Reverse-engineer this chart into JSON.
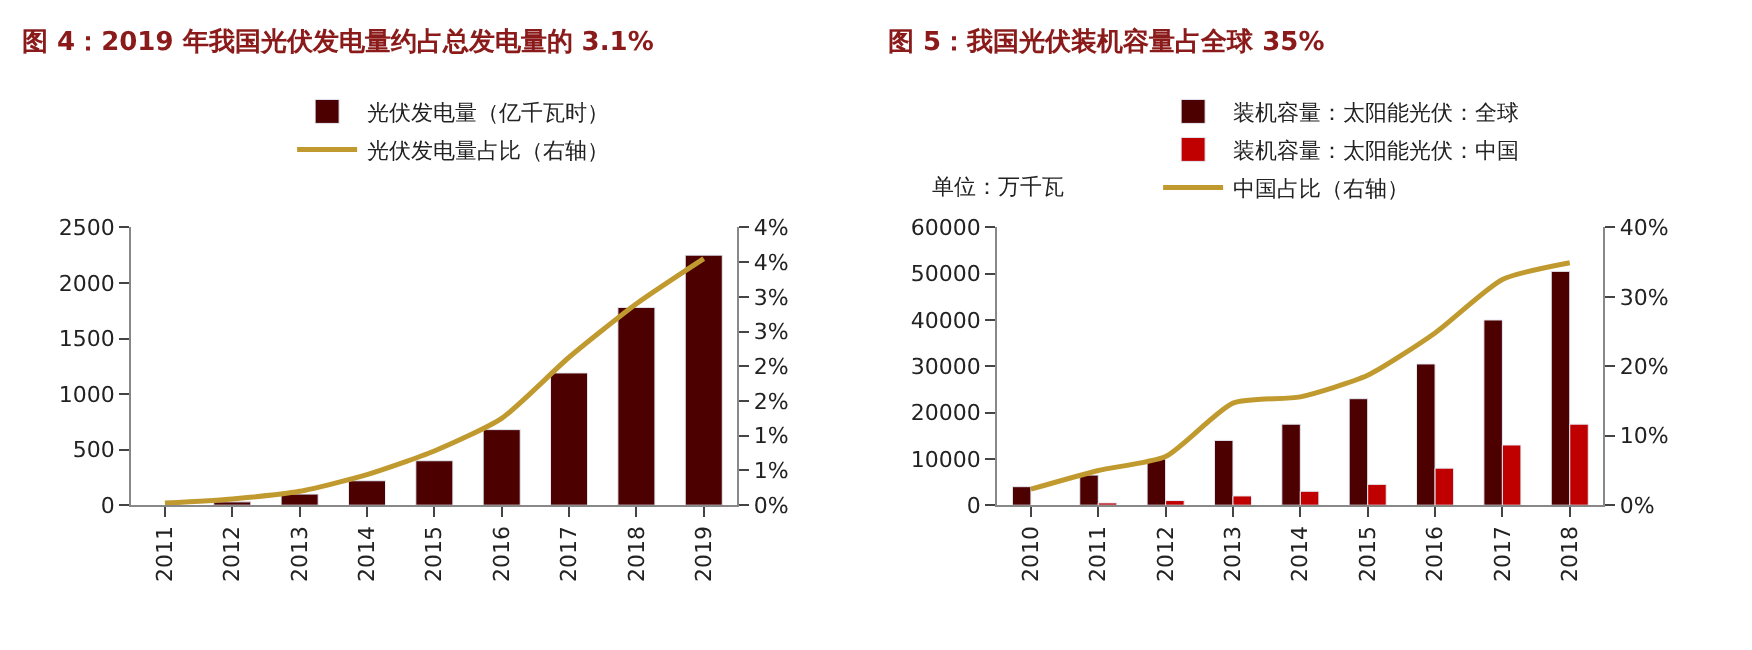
{
  "chart_data": [
    {
      "type": "bar",
      "title": "图 4：2019 年我国光伏发电量约占总发电量的 3.1%",
      "categories": [
        "2011",
        "2012",
        "2013",
        "2014",
        "2015",
        "2016",
        "2017",
        "2018",
        "2019"
      ],
      "series": [
        {
          "name": "光伏发电量（亿千瓦时）",
          "color": "#4d0000",
          "values": [
            null,
            30,
            100,
            220,
            400,
            680,
            1190,
            1780,
            2250
          ]
        },
        {
          "name": "光伏发电量占比（右轴）",
          "type": "line",
          "axis": "y2",
          "color": "#c09a2e",
          "values": [
            0.03,
            0.09,
            0.2,
            0.44,
            0.78,
            1.25,
            2.13,
            2.9,
            3.55
          ]
        }
      ],
      "ylim": [
        0,
        2500
      ],
      "yticks": [
        0,
        500,
        1000,
        1500,
        2000,
        2500
      ],
      "y2lim": [
        0,
        4
      ],
      "y2ticks": [
        {
          "value": 0,
          "label": "0%"
        },
        {
          "value": 0.5,
          "label": "1%"
        },
        {
          "value": 1,
          "label": "1%"
        },
        {
          "value": 1.5,
          "label": "2%"
        },
        {
          "value": 2,
          "label": "2%"
        },
        {
          "value": 2.5,
          "label": "3%"
        },
        {
          "value": 3,
          "label": "3%"
        },
        {
          "value": 3.5,
          "label": "4%"
        },
        {
          "value": 4,
          "label": "4%"
        }
      ],
      "legend": "top",
      "marker": "none",
      "line_style": "solid"
    },
    {
      "type": "bar",
      "title": "图 5：我国光伏装机容量占全球 35%",
      "annotations": [
        "单位：万千瓦"
      ],
      "categories": [
        "2010",
        "2011",
        "2012",
        "2013",
        "2014",
        "2015",
        "2016",
        "2017",
        "2018"
      ],
      "series": [
        {
          "name": "装机容量：太阳能光伏：全球",
          "color": "#4d0000",
          "values": [
            4000,
            6500,
            10000,
            14000,
            17500,
            23000,
            30500,
            40000,
            50500
          ]
        },
        {
          "name": "装机容量：太阳能光伏：中国",
          "color": "#c00000",
          "values": [
            null,
            500,
            1000,
            2000,
            3000,
            4500,
            8000,
            13000,
            17500
          ]
        },
        {
          "name": "中国占比（右轴）",
          "type": "line",
          "axis": "y2",
          "color": "#c09a2e",
          "values": [
            2.3,
            5.0,
            7.0,
            14.7,
            15.6,
            18.7,
            24.8,
            32.5,
            34.9
          ]
        }
      ],
      "ylim": [
        0,
        60000
      ],
      "yticks": [
        0,
        10000,
        20000,
        30000,
        40000,
        50000,
        60000
      ],
      "y2lim": [
        0,
        40
      ],
      "y2ticks": [
        {
          "value": 0,
          "label": "0%"
        },
        {
          "value": 10,
          "label": "10%"
        },
        {
          "value": 20,
          "label": "20%"
        },
        {
          "value": 30,
          "label": "30%"
        },
        {
          "value": 40,
          "label": "40%"
        }
      ],
      "legend": "top",
      "marker": "none",
      "line_style": "solid"
    }
  ]
}
